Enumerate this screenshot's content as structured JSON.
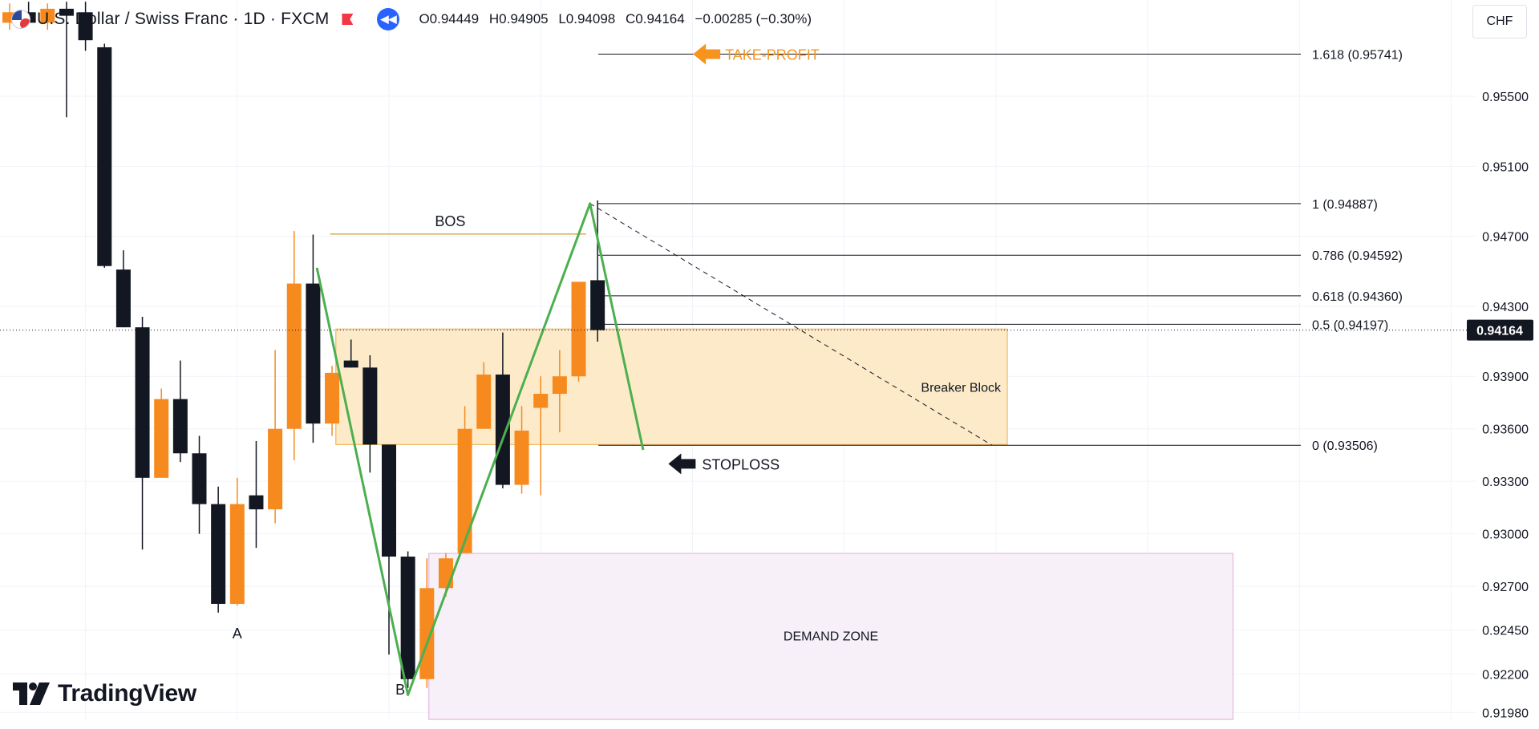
{
  "header": {
    "symbol": "U.S. Dollar / Swiss Franc · 1D · FXCM",
    "open": "O0.94449",
    "high": "H0.94905",
    "low": "L0.94098",
    "close": "C0.94164",
    "change": "−0.00285 (−0.30%)",
    "currency": "CHF"
  },
  "brand": {
    "name": "TradingView"
  },
  "colors": {
    "bull": "#f68a1e",
    "bear": "#131722",
    "zigzag": "#4caf50",
    "breaker_fill": "#fde6c0",
    "breaker_border": "#f0b860",
    "demand_fill": "#f7f0f8",
    "demand_border": "#e8c3e6",
    "take_profit": "#f7941d",
    "last_price_bg": "#131722"
  },
  "chart_data": {
    "type": "candlestick",
    "instrument": "USDCHF",
    "timeframe": "1D",
    "last_price": 0.94164,
    "last_price_label": "0.94164",
    "ylim": [
      0.9194,
      0.9605
    ],
    "y_ticks": [
      0.955,
      0.951,
      0.947,
      0.943,
      0.939,
      0.936,
      0.933,
      0.93,
      0.927,
      0.9245,
      0.922,
      0.9198
    ],
    "y_tick_labels": [
      "0.95500",
      "0.95100",
      "0.94700",
      "0.94300",
      "0.93900",
      "0.93600",
      "0.93300",
      "0.93000",
      "0.92700",
      "0.92450",
      "0.92200",
      "0.91980"
    ],
    "candles": [
      {
        "o": 0.9592,
        "h": 0.9603,
        "l": 0.9588,
        "c": 0.9598
      },
      {
        "o": 0.9598,
        "h": 0.9604,
        "l": 0.9596,
        "c": 0.9592
      },
      {
        "o": 0.9592,
        "h": 0.9603,
        "l": 0.9588,
        "c": 0.96
      },
      {
        "o": 0.96,
        "h": 0.9604,
        "l": 0.9538,
        "c": 0.9596
      },
      {
        "o": 0.9598,
        "h": 0.9604,
        "l": 0.9576,
        "c": 0.9582
      },
      {
        "o": 0.9578,
        "h": 0.958,
        "l": 0.9452,
        "c": 0.9453
      },
      {
        "o": 0.9451,
        "h": 0.9462,
        "l": 0.9418,
        "c": 0.9418
      },
      {
        "o": 0.9418,
        "h": 0.9424,
        "l": 0.9291,
        "c": 0.9332
      },
      {
        "o": 0.9332,
        "h": 0.9383,
        "l": 0.9332,
        "c": 0.9377
      },
      {
        "o": 0.9377,
        "h": 0.9399,
        "l": 0.9341,
        "c": 0.9346
      },
      {
        "o": 0.9346,
        "h": 0.9356,
        "l": 0.93,
        "c": 0.9317
      },
      {
        "o": 0.9317,
        "h": 0.9327,
        "l": 0.9255,
        "c": 0.926
      },
      {
        "o": 0.926,
        "h": 0.9332,
        "l": 0.9259,
        "c": 0.9317
      },
      {
        "o": 0.9322,
        "h": 0.9353,
        "l": 0.9292,
        "c": 0.9314
      },
      {
        "o": 0.9314,
        "h": 0.9405,
        "l": 0.9306,
        "c": 0.936
      },
      {
        "o": 0.936,
        "h": 0.9473,
        "l": 0.9342,
        "c": 0.9443
      },
      {
        "o": 0.9443,
        "h": 0.9471,
        "l": 0.9352,
        "c": 0.9363
      },
      {
        "o": 0.9363,
        "h": 0.9396,
        "l": 0.9356,
        "c": 0.9392
      },
      {
        "o": 0.9399,
        "h": 0.9411,
        "l": 0.9395,
        "c": 0.9395
      },
      {
        "o": 0.9395,
        "h": 0.9402,
        "l": 0.9335,
        "c": 0.9351
      },
      {
        "o": 0.9351,
        "h": 0.9351,
        "l": 0.9231,
        "c": 0.9287
      },
      {
        "o": 0.9287,
        "h": 0.929,
        "l": 0.9212,
        "c": 0.9217
      },
      {
        "o": 0.9217,
        "h": 0.9286,
        "l": 0.9212,
        "c": 0.9269
      },
      {
        "o": 0.9269,
        "h": 0.9289,
        "l": 0.9264,
        "c": 0.9286
      },
      {
        "o": 0.9289,
        "h": 0.9373,
        "l": 0.9289,
        "c": 0.936
      },
      {
        "o": 0.936,
        "h": 0.9398,
        "l": 0.936,
        "c": 0.9391
      },
      {
        "o": 0.9391,
        "h": 0.9415,
        "l": 0.9326,
        "c": 0.9328
      },
      {
        "o": 0.9328,
        "h": 0.9373,
        "l": 0.9323,
        "c": 0.9359
      },
      {
        "o": 0.9372,
        "h": 0.939,
        "l": 0.9322,
        "c": 0.938
      },
      {
        "o": 0.938,
        "h": 0.9405,
        "l": 0.9358,
        "c": 0.939
      },
      {
        "o": 0.939,
        "h": 0.9444,
        "l": 0.9387,
        "c": 0.9444
      },
      {
        "o": 0.94449,
        "h": 0.94905,
        "l": 0.94098,
        "c": 0.94164
      }
    ],
    "fib_levels": [
      {
        "ratio": "1.618",
        "price": 0.95741,
        "label": "1.618 (0.95741)"
      },
      {
        "ratio": "1",
        "price": 0.94887,
        "label": "1 (0.94887)"
      },
      {
        "ratio": "0.786",
        "price": 0.94592,
        "label": "0.786 (0.94592)"
      },
      {
        "ratio": "0.618",
        "price": 0.9436,
        "label": "0.618 (0.94360)"
      },
      {
        "ratio": "0.5",
        "price": 0.94197,
        "label": "0.5 (0.94197)"
      },
      {
        "ratio": "0",
        "price": 0.93506,
        "label": "0 (0.93506)"
      }
    ],
    "zigzag": [
      {
        "bar": 16.2,
        "price": 0.9452
      },
      {
        "bar": 21.0,
        "price": 0.9208
      },
      {
        "bar": 30.6,
        "price": 0.94887
      },
      {
        "bar": 33.4,
        "price": 0.9348
      }
    ],
    "trendline": {
      "from": {
        "bar": 30.6,
        "price": 0.94887
      },
      "to": {
        "bar": 51.8,
        "price": 0.93506
      }
    },
    "bos": {
      "label": "BOS",
      "price": 0.94713,
      "from_bar": 16.9,
      "to_bar": 30.4
    },
    "breaker_block": {
      "label": "Breaker Block",
      "top": 0.9417,
      "bottom": 0.9351,
      "from_bar": 17.2,
      "to_bar": 52.6
    },
    "demand_zone": {
      "label": "DEMAND ZONE",
      "top": 0.92888,
      "bottom": 0.9194,
      "from_bar": 22.1,
      "to_bar": 64.5
    },
    "annotations": [
      {
        "text": "A",
        "bar": 12.0,
        "price": 0.9243
      },
      {
        "text": "B",
        "bar": 20.6,
        "price": 0.9211
      },
      {
        "text": "TAKE-PROFIT",
        "bar": 36.2,
        "price": 0.95741
      },
      {
        "text": "STOPLOSS",
        "bar": 34.9,
        "price": 0.934
      }
    ]
  }
}
